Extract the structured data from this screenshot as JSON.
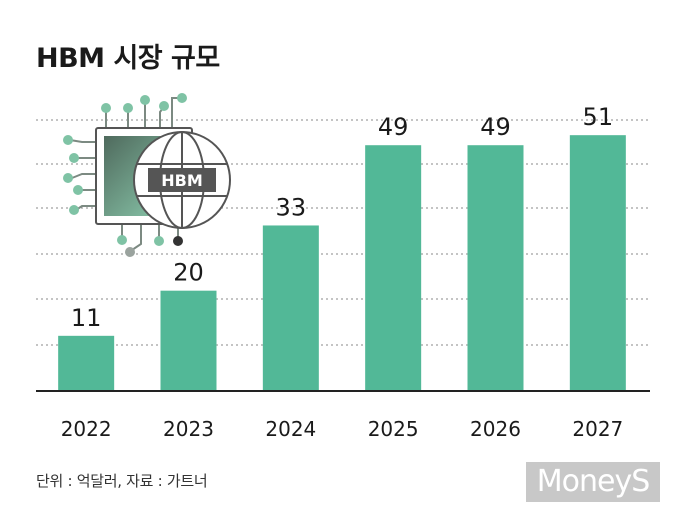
{
  "title": "HBM 시장 규모",
  "footnote": "단위 : 억달러, 자료 : 가트너",
  "logo": {
    "text": "MoneyS",
    "icon": "moneys-logo"
  },
  "illustration": {
    "label": "HBM",
    "icon": "chip-globe-icon"
  },
  "colors": {
    "bar": "#52b897",
    "grid": "#888888",
    "axis": "#222222",
    "chip_dark": "#6e8478",
    "chip_light": "#7fc3a5"
  },
  "chart_data": {
    "type": "bar",
    "categories": [
      "2022",
      "2023",
      "2024",
      "2025",
      "2026",
      "2027"
    ],
    "values": [
      11,
      20,
      33,
      49,
      49,
      51
    ],
    "ylim": [
      0,
      62
    ],
    "grid": true,
    "unit": "억달러"
  }
}
